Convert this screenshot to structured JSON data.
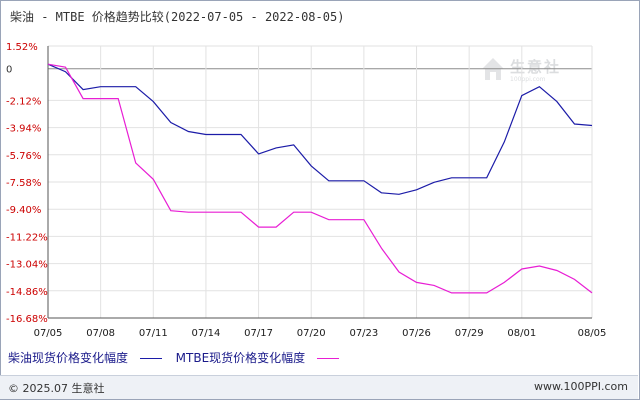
{
  "title": "柴油 - MTBE 价格趋势比较(2022-07-05 - 2022-08-05)",
  "watermark": {
    "text": "生意社",
    "url": "100ppi.com"
  },
  "footer": {
    "left": "© 2025.07 生意社",
    "right": "www.100PPI.com"
  },
  "colors": {
    "series1": "#1c1ca8",
    "series2": "#e81ed4",
    "y_labels": "#cc0000",
    "grid": "#e2e2e2",
    "zero_line": "#8c8c8c"
  },
  "chart_data": {
    "type": "line",
    "title": "柴油 - MTBE 价格趋势比较(2022-07-05 - 2022-08-05)",
    "xlabel": "",
    "ylabel": "",
    "x": [
      "07/05",
      "07/06",
      "07/07",
      "07/08",
      "07/09",
      "07/10",
      "07/11",
      "07/12",
      "07/13",
      "07/14",
      "07/15",
      "07/16",
      "07/17",
      "07/18",
      "07/19",
      "07/20",
      "07/21",
      "07/22",
      "07/23",
      "07/24",
      "07/25",
      "07/26",
      "07/27",
      "07/28",
      "07/29",
      "07/30",
      "07/31",
      "08/01",
      "08/02",
      "08/03",
      "08/04",
      "08/05"
    ],
    "x_tick_labels": [
      "07/05",
      "07/08",
      "07/11",
      "07/14",
      "07/17",
      "07/20",
      "07/23",
      "07/26",
      "07/29",
      "08/01",
      "08/05"
    ],
    "y_tick_labels": [
      "1.52%",
      "0",
      "-2.12%",
      "-3.94%",
      "-5.76%",
      "-7.58%",
      "-9.40%",
      "-11.22%",
      "-13.04%",
      "-14.86%",
      "-16.68%"
    ],
    "y_ticks": [
      1.52,
      0,
      -2.12,
      -3.94,
      -5.76,
      -7.58,
      -9.4,
      -11.22,
      -13.04,
      -14.86,
      -16.68
    ],
    "ylim": [
      -16.68,
      1.52
    ],
    "grid": true,
    "legend_position": "bottom-left",
    "series": [
      {
        "name": "柴油现货价格变化幅度",
        "values": [
          0.3,
          -0.2,
          -1.4,
          -1.2,
          -1.2,
          -1.2,
          -2.2,
          -3.6,
          -4.2,
          -4.4,
          -4.4,
          -4.4,
          -5.7,
          -5.3,
          -5.1,
          -6.5,
          -7.5,
          -7.5,
          -7.5,
          -8.3,
          -8.4,
          -8.1,
          -7.6,
          -7.3,
          -7.3,
          -7.3,
          -4.9,
          -1.8,
          -1.2,
          -2.2,
          -3.7,
          -3.8
        ]
      },
      {
        "name": "MTBE现货价格变化幅度",
        "values": [
          0.3,
          0.1,
          -2.0,
          -2.0,
          -2.0,
          -6.3,
          -7.4,
          -9.5,
          -9.6,
          -9.6,
          -9.6,
          -9.6,
          -10.6,
          -10.6,
          -9.6,
          -9.6,
          -10.1,
          -10.1,
          -10.1,
          -12.0,
          -13.6,
          -14.3,
          -14.5,
          -15.0,
          -15.0,
          -15.0,
          -14.3,
          -13.4,
          -13.2,
          -13.5,
          -14.1,
          -15.0
        ]
      }
    ]
  }
}
